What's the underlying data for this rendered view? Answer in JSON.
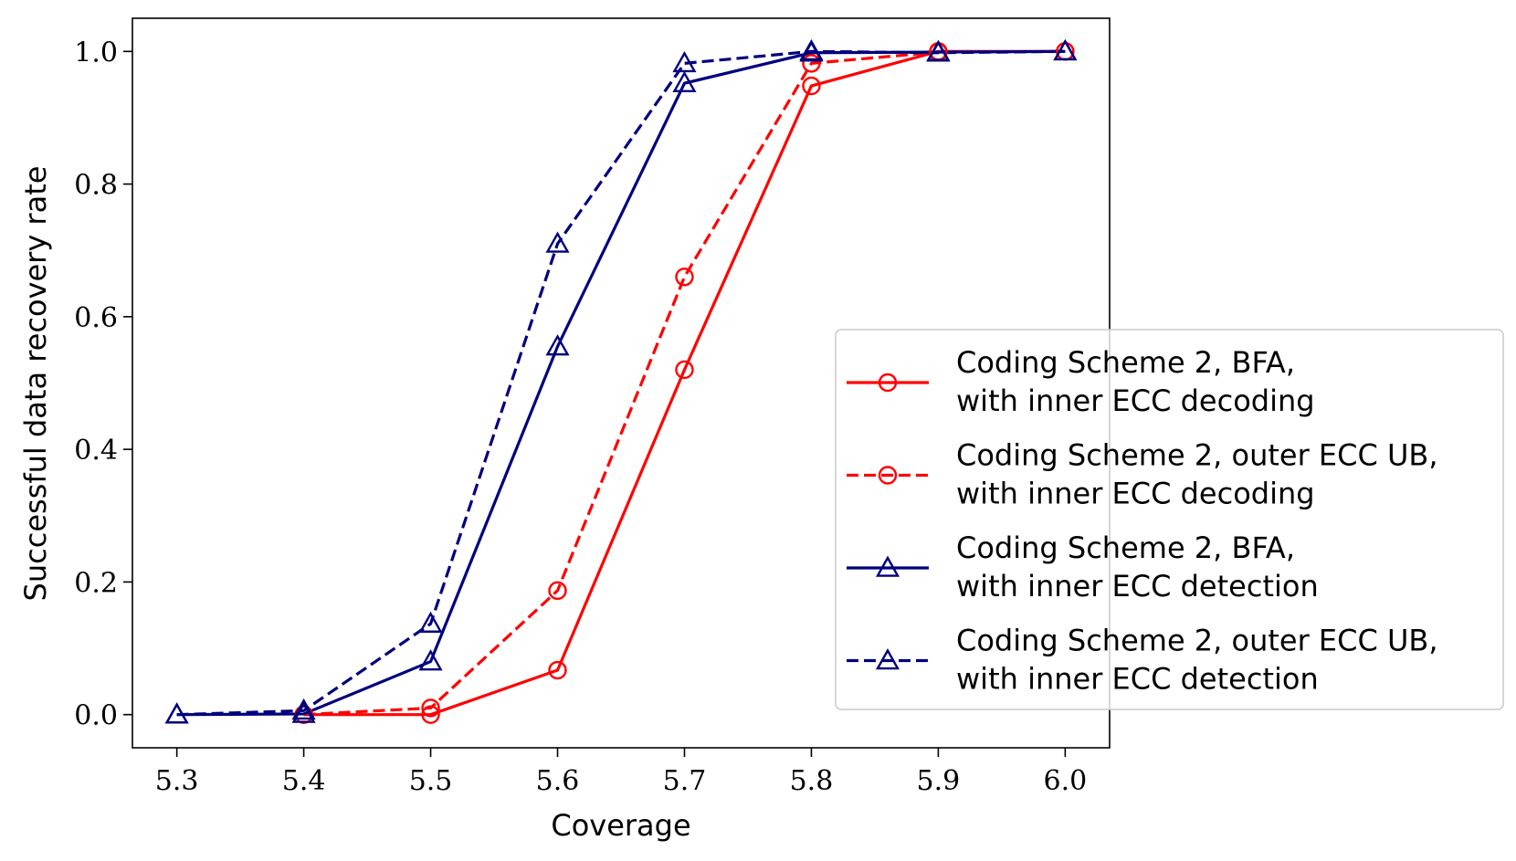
{
  "chart_data": {
    "type": "line",
    "xlabel": "Coverage",
    "ylabel": "Successful data recovery rate",
    "x": [
      5.3,
      5.4,
      5.5,
      5.6,
      5.7,
      5.8,
      5.9,
      6.0
    ],
    "x_tick_labels": [
      "5.3",
      "5.4",
      "5.5",
      "5.6",
      "5.7",
      "5.8",
      "5.9",
      "6.0"
    ],
    "y_tick_values": [
      0.0,
      0.2,
      0.4,
      0.6,
      0.8,
      1.0
    ],
    "y_tick_labels": [
      "0.0",
      "0.2",
      "0.4",
      "0.6",
      "0.8",
      "1.0"
    ],
    "xlim": [
      5.265,
      6.035
    ],
    "ylim": [
      -0.05,
      1.05
    ],
    "grid": false,
    "legend_position": "center-right",
    "series": [
      {
        "name": [
          "Coding Scheme 2, BFA,",
          "with inner ECC decoding"
        ],
        "color": "#ff0000",
        "line_style": "solid",
        "marker": "circle",
        "x": [
          5.4,
          5.5,
          5.6,
          5.7,
          5.8,
          5.9,
          6.0
        ],
        "values": [
          0.0,
          0.0,
          0.067,
          0.52,
          0.948,
          1.0,
          1.0
        ]
      },
      {
        "name": [
          "Coding Scheme 2, outer ECC UB,",
          "with inner ECC decoding"
        ],
        "color": "#ff0000",
        "line_style": "dashed",
        "marker": "circle",
        "x": [
          5.4,
          5.5,
          5.6,
          5.7,
          5.8,
          5.9,
          6.0
        ],
        "values": [
          0.0,
          0.01,
          0.187,
          0.66,
          0.982,
          0.999,
          1.0
        ]
      },
      {
        "name": [
          "Coding Scheme 2, BFA,",
          "with inner ECC detection"
        ],
        "color": "#00007f",
        "line_style": "solid",
        "marker": "triangle",
        "x": [
          5.3,
          5.4,
          5.5,
          5.6,
          5.7,
          5.8,
          5.9,
          6.0
        ],
        "values": [
          0.0,
          0.001,
          0.08,
          0.555,
          0.952,
          0.998,
          0.999,
          1.0
        ]
      },
      {
        "name": [
          "Coding Scheme 2, outer ECC UB,",
          "with inner ECC detection"
        ],
        "color": "#00007f",
        "line_style": "dashed",
        "marker": "triangle",
        "x": [
          5.3,
          5.4,
          5.5,
          5.6,
          5.7,
          5.8,
          5.9,
          6.0
        ],
        "values": [
          0.0,
          0.006,
          0.137,
          0.71,
          0.982,
          1.0,
          0.998,
          1.0
        ]
      }
    ]
  }
}
